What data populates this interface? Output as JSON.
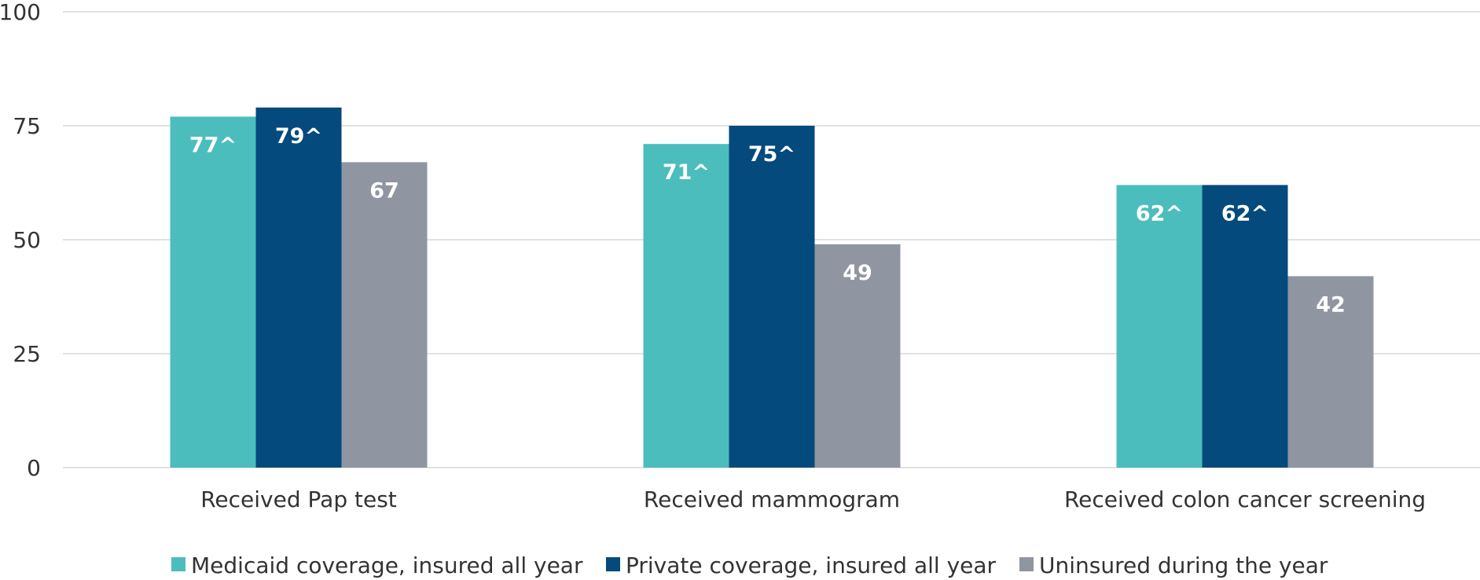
{
  "chart_data": {
    "type": "bar",
    "title": "",
    "xlabel": "",
    "ylabel": "",
    "ylim": [
      0,
      100
    ],
    "yticks": [
      0,
      25,
      50,
      75,
      100
    ],
    "grid": true,
    "legend_position": "bottom",
    "categories": [
      "Received Pap test",
      "Received mammogram",
      "Received colon cancer screening"
    ],
    "series": [
      {
        "name": "Medicaid coverage, insured all year",
        "color": "#4cbdbd",
        "values": [
          77,
          71,
          62
        ],
        "labels": [
          "77^",
          "71^",
          "62^"
        ]
      },
      {
        "name": "Private coverage, insured all year",
        "color": "#054a7c",
        "values": [
          79,
          75,
          62
        ],
        "labels": [
          "79^",
          "75^",
          "62^"
        ]
      },
      {
        "name": "Uninsured during the year",
        "color": "#8f96a1",
        "values": [
          67,
          49,
          42
        ],
        "labels": [
          "67",
          "49",
          "42"
        ]
      }
    ]
  }
}
